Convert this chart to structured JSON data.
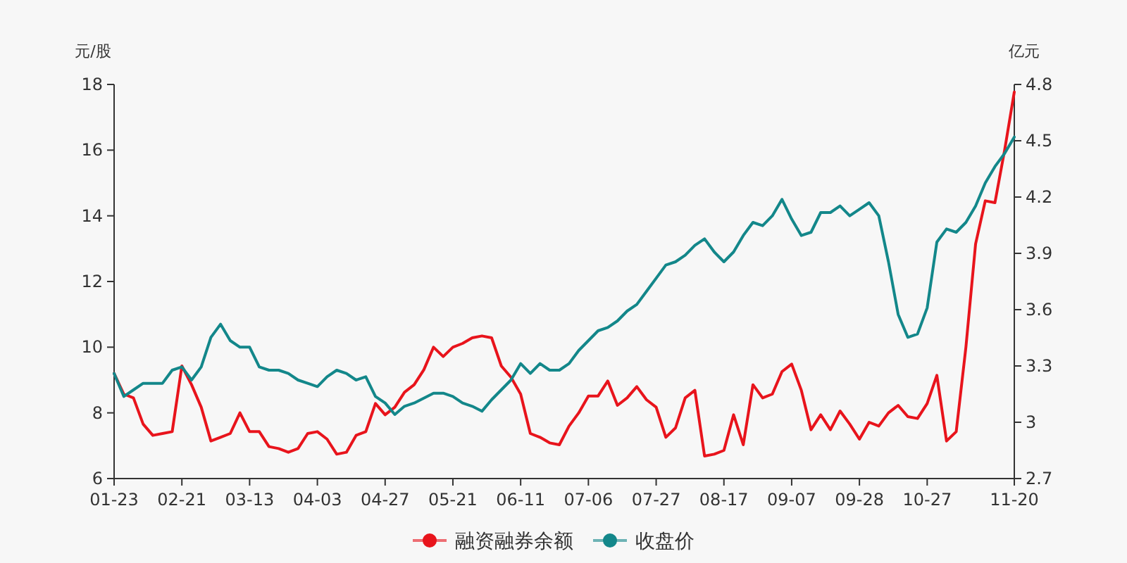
{
  "chart_data": {
    "type": "line",
    "ylabel": "元/股",
    "y2label": "亿元",
    "categories": [
      "01-23",
      null,
      null,
      null,
      null,
      null,
      null,
      "02-21",
      null,
      null,
      null,
      null,
      null,
      null,
      "03-13",
      null,
      null,
      null,
      null,
      null,
      null,
      "04-03",
      null,
      null,
      null,
      null,
      null,
      null,
      "04-27",
      null,
      null,
      null,
      null,
      null,
      null,
      "05-21",
      null,
      null,
      null,
      null,
      null,
      null,
      "06-11",
      null,
      null,
      null,
      null,
      null,
      null,
      "07-06",
      null,
      null,
      null,
      null,
      null,
      null,
      "07-27",
      null,
      null,
      null,
      null,
      null,
      null,
      "08-17",
      null,
      null,
      null,
      null,
      null,
      null,
      "09-07",
      null,
      null,
      null,
      null,
      null,
      null,
      "09-28",
      null,
      null,
      null,
      null,
      null,
      null,
      "10-27",
      null,
      null,
      null,
      null,
      null,
      null,
      null,
      null,
      "11-20"
    ],
    "series": [
      {
        "name": "融资融券余额",
        "color": "#e8141c",
        "axis": "y2",
        "values": [
          3.26,
          3.15,
          3.13,
          2.99,
          2.93,
          2.94,
          2.95,
          3.3,
          3.2,
          3.08,
          2.9,
          2.92,
          2.94,
          3.05,
          2.95,
          2.95,
          2.87,
          2.86,
          2.84,
          2.86,
          2.94,
          2.95,
          2.91,
          2.83,
          2.84,
          2.93,
          2.95,
          3.1,
          3.04,
          3.08,
          3.16,
          3.2,
          3.28,
          3.4,
          3.35,
          3.4,
          3.42,
          3.45,
          3.46,
          3.45,
          3.3,
          3.24,
          3.15,
          2.94,
          2.92,
          2.89,
          2.88,
          2.98,
          3.05,
          3.14,
          3.14,
          3.22,
          3.09,
          3.13,
          3.19,
          3.12,
          3.08,
          2.92,
          2.97,
          3.13,
          3.17,
          2.82,
          2.83,
          2.85,
          3.04,
          2.88,
          3.2,
          3.13,
          3.15,
          3.27,
          3.31,
          3.17,
          2.96,
          3.04,
          2.96,
          3.06,
          2.99,
          2.91,
          3.0,
          2.98,
          3.05,
          3.09,
          3.03,
          3.02,
          3.1,
          3.25,
          2.9,
          2.95,
          3.4,
          3.95,
          4.18,
          4.17,
          4.45,
          4.76
        ]
      },
      {
        "name": "收盘价",
        "color": "#13878a",
        "values": [
          9.2,
          8.5,
          8.7,
          8.9,
          8.9,
          8.9,
          9.3,
          9.4,
          9.0,
          9.4,
          10.3,
          10.7,
          10.2,
          10.0,
          10.0,
          9.4,
          9.3,
          9.3,
          9.2,
          9.0,
          8.9,
          8.8,
          9.1,
          9.3,
          9.2,
          9.0,
          9.1,
          8.5,
          8.3,
          7.95,
          8.2,
          8.3,
          8.45,
          8.6,
          8.6,
          8.5,
          8.3,
          8.2,
          8.05,
          8.4,
          8.7,
          9.0,
          9.5,
          9.2,
          9.5,
          9.3,
          9.3,
          9.5,
          9.9,
          10.2,
          10.5,
          10.6,
          10.8,
          11.1,
          11.3,
          11.7,
          12.1,
          12.5,
          12.6,
          12.8,
          13.1,
          13.3,
          12.9,
          12.6,
          12.9,
          13.4,
          13.8,
          13.7,
          14.0,
          14.5,
          13.9,
          13.4,
          13.5,
          14.1,
          14.1,
          14.3,
          14.0,
          14.2,
          14.4,
          14.0,
          12.6,
          11.0,
          10.3,
          10.4,
          11.2,
          13.2,
          13.6,
          13.5,
          13.8,
          14.3,
          15.0,
          15.5,
          15.9,
          16.4
        ]
      }
    ],
    "ylim": [
      6,
      18
    ],
    "yticks": [
      6,
      8,
      10,
      12,
      14,
      16,
      18
    ],
    "y2lim": [
      2.7,
      4.8
    ],
    "y2ticks": [
      2.7,
      3,
      3.3,
      3.6,
      3.9,
      4.2,
      4.5,
      4.8
    ],
    "legend": "bottom"
  }
}
